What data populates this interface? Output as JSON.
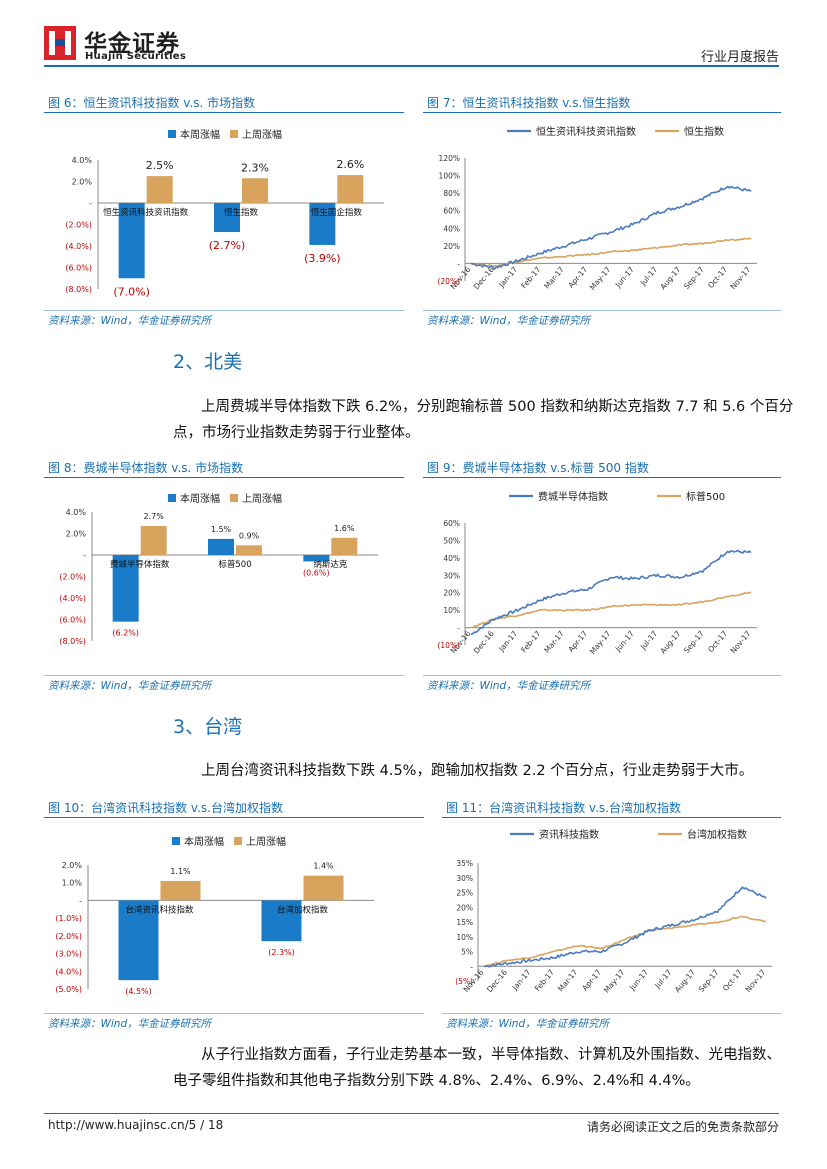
{
  "header": {
    "brand_cn": "华金证券",
    "brand_en": "Huajin Securities",
    "report_type": "行业月度报告"
  },
  "colors": {
    "accent": "#1a6fb0",
    "bar_this_week": "#1a7cc8",
    "bar_last_week": "#d8a35c",
    "negative_label": "#c00000",
    "line_primary": "#4a7bbf",
    "line_secondary": "#d8a35c"
  },
  "figures": {
    "fig6": {
      "title": "图 6：恒生资讯科技指数 v.s. 市场指数",
      "source": "资料来源：Wind，华金证券研究所"
    },
    "fig7": {
      "title": "图 7：恒生资讯科技指数 v.s.恒生指数",
      "source": "资料来源：Wind，华金证券研究所"
    },
    "fig8": {
      "title": "图 8：费城半导体指数  v.s. 市场指数",
      "source": "资料来源：Wind，华金证券研究所"
    },
    "fig9": {
      "title": "图 9：费城半导体指数 v.s.标普 500 指数",
      "source": "资料来源：Wind，华金证券研究所"
    },
    "fig10": {
      "title": "图 10：台湾资讯科技指数 v.s.台湾加权指数",
      "source": "资料来源：Wind，华金证券研究所"
    },
    "fig11": {
      "title": "图 11：台湾资讯科技指数 v.s.台湾加权指数",
      "source": "资料来源：Wind，华金证券研究所"
    }
  },
  "sections": {
    "north_america": {
      "heading": "2、北美",
      "para_line1": "上周费城半导体指数下跌 6.2%，分别跑输标普 500 指数和纳斯达克指数 7.7 和 5.6 个百分",
      "para_line2": "点，市场行业指数走势弱于行业整体。"
    },
    "taiwan": {
      "heading": "3、台湾",
      "para": "上周台湾资讯科技指数下跌 4.5%，跑输加权指数 2.2 个百分点，行业走势弱于大市。"
    },
    "sub_industry": {
      "para_line1": "从子行业指数方面看，子行业走势基本一致，半导体指数、计算机及外围指数、光电指数、",
      "para_line2": "电子零组件指数和其他电子指数分别下跌 4.8%、2.4%、6.9%、2.4%和 4.4%。"
    }
  },
  "footer": {
    "url": "http://www.huajinsc.cn/5 / 18",
    "disclaimer": "请务必阅读正文之后的免责条款部分"
  },
  "chart_data": [
    {
      "id": "fig6",
      "type": "bar",
      "title": "恒生资讯科技指数 v.s. 市场指数",
      "categories": [
        "恒生资讯科技资讯指数",
        "恒生指数",
        "恒生国企指数"
      ],
      "series": [
        {
          "name": "本周涨幅",
          "values": [
            -7.0,
            -2.7,
            -3.9
          ],
          "labels": [
            "(7.0%)",
            "(2.7%)",
            "(3.9%)"
          ]
        },
        {
          "name": "上周涨幅",
          "values": [
            2.5,
            2.3,
            2.6
          ],
          "labels": [
            "2.5%",
            "2.3%",
            "2.6%"
          ]
        }
      ],
      "yticks": [
        4,
        2,
        0,
        -2,
        -4,
        -6,
        -8
      ],
      "ytick_labels": [
        "4.0%",
        "2.0%",
        "-",
        "(2.0%)",
        "(4.0%)",
        "(6.0%)",
        "(8.0%)"
      ],
      "ylim": [
        -8,
        4
      ]
    },
    {
      "id": "fig7",
      "type": "line",
      "title": "恒生资讯科技指数 v.s.恒生指数",
      "x": [
        "Nov-16",
        "Dec-16",
        "Jan-17",
        "Feb-17",
        "Mar-17",
        "Apr-17",
        "May-17",
        "Jun-17",
        "Jul-17",
        "Aug-17",
        "Sep-17",
        "Oct-17",
        "Nov-17"
      ],
      "series": [
        {
          "name": "恒生资讯科技资讯指数",
          "values": [
            0,
            -5,
            3,
            12,
            20,
            28,
            36,
            45,
            58,
            65,
            75,
            88,
            82
          ]
        },
        {
          "name": "恒生指数",
          "values": [
            0,
            -3,
            2,
            6,
            8,
            10,
            13,
            15,
            18,
            21,
            23,
            27,
            28
          ]
        }
      ],
      "yticks": [
        120,
        100,
        80,
        60,
        40,
        20,
        0,
        -20
      ],
      "ytick_labels": [
        "120%",
        "100%",
        "80%",
        "60%",
        "40%",
        "20%",
        "-",
        "(20%)"
      ],
      "ylim": [
        -20,
        120
      ]
    },
    {
      "id": "fig8",
      "type": "bar",
      "title": "费城半导体指数 v.s. 市场指数",
      "categories": [
        "费城半导体指数",
        "标普500",
        "纳斯达克"
      ],
      "series": [
        {
          "name": "本周涨幅",
          "values": [
            -6.2,
            1.5,
            -0.6
          ],
          "labels": [
            "(6.2%)",
            "1.5%",
            "(0.6%)"
          ]
        },
        {
          "name": "上周涨幅",
          "values": [
            2.7,
            0.9,
            1.6
          ],
          "labels": [
            "2.7%",
            "0.9%",
            "1.6%"
          ]
        }
      ],
      "yticks": [
        4,
        2,
        0,
        -2,
        -4,
        -6,
        -8
      ],
      "ytick_labels": [
        "4.0%",
        "2.0%",
        "-",
        "(2.0%)",
        "(4.0%)",
        "(6.0%)",
        "(8.0%)"
      ],
      "ylim": [
        -8,
        4
      ]
    },
    {
      "id": "fig9",
      "type": "line",
      "title": "费城半导体指数 v.s.标普 500 指数",
      "x": [
        "Nov-16",
        "Dec-16",
        "Jan-17",
        "Feb-17",
        "Mar-17",
        "Apr-17",
        "May-17",
        "Jun-17",
        "Jul-17",
        "Aug-17",
        "Sep-17",
        "Oct-17",
        "Nov-17"
      ],
      "series": [
        {
          "name": "费城半导体指数",
          "values": [
            -4,
            5,
            10,
            16,
            20,
            22,
            29,
            28,
            30,
            29,
            33,
            44,
            43
          ]
        },
        {
          "name": "标普500",
          "values": [
            0,
            5,
            7,
            10,
            10,
            10,
            12,
            13,
            13,
            13,
            15,
            18,
            20
          ]
        }
      ],
      "yticks": [
        60,
        50,
        40,
        30,
        20,
        10,
        0,
        -10
      ],
      "ytick_labels": [
        "60%",
        "50%",
        "40%",
        "30%",
        "20%",
        "10%",
        "-",
        "(10%)"
      ],
      "ylim": [
        -10,
        60
      ]
    },
    {
      "id": "fig10",
      "type": "bar",
      "title": "台湾资讯科技指数 v.s.台湾加权指数",
      "categories": [
        "台湾资讯科技指数",
        "台湾加权指数"
      ],
      "series": [
        {
          "name": "本周涨幅",
          "values": [
            -4.5,
            -2.3
          ],
          "labels": [
            "(4.5%)",
            "(2.3%)"
          ]
        },
        {
          "name": "上周涨幅",
          "values": [
            1.1,
            1.4
          ],
          "labels": [
            "1.1%",
            "1.4%"
          ]
        }
      ],
      "yticks": [
        2,
        1,
        0,
        -1,
        -2,
        -3,
        -4,
        -5
      ],
      "ytick_labels": [
        "2.0%",
        "1.0%",
        "-",
        "(1.0%)",
        "(2.0%)",
        "(3.0%)",
        "(4.0%)",
        "(5.0%)"
      ],
      "ylim": [
        -5,
        2
      ]
    },
    {
      "id": "fig11",
      "type": "line",
      "title": "台湾资讯科技指数 v.s.台湾加权指数",
      "x": [
        "Nov-16",
        "Dec-16",
        "Jan-17",
        "Feb-17",
        "Mar-17",
        "Apr-17",
        "May-17",
        "Jun-17",
        "Jul-17",
        "Aug-17",
        "Sep-17",
        "Oct-17",
        "Nov-17"
      ],
      "series": [
        {
          "name": "资讯科技指数",
          "values": [
            0,
            1,
            2,
            3,
            5,
            5,
            8,
            12,
            14,
            16,
            19,
            27,
            23
          ]
        },
        {
          "name": "台湾加权指数",
          "values": [
            0,
            2,
            3,
            5,
            7,
            6,
            9,
            12,
            13,
            14,
            15,
            17,
            15
          ]
        }
      ],
      "yticks": [
        35,
        30,
        25,
        20,
        15,
        10,
        5,
        0,
        -5
      ],
      "ytick_labels": [
        "35%",
        "30%",
        "25%",
        "20%",
        "15%",
        "10%",
        "5%",
        "-",
        "(5%)"
      ],
      "ylim": [
        -5,
        35
      ]
    }
  ]
}
